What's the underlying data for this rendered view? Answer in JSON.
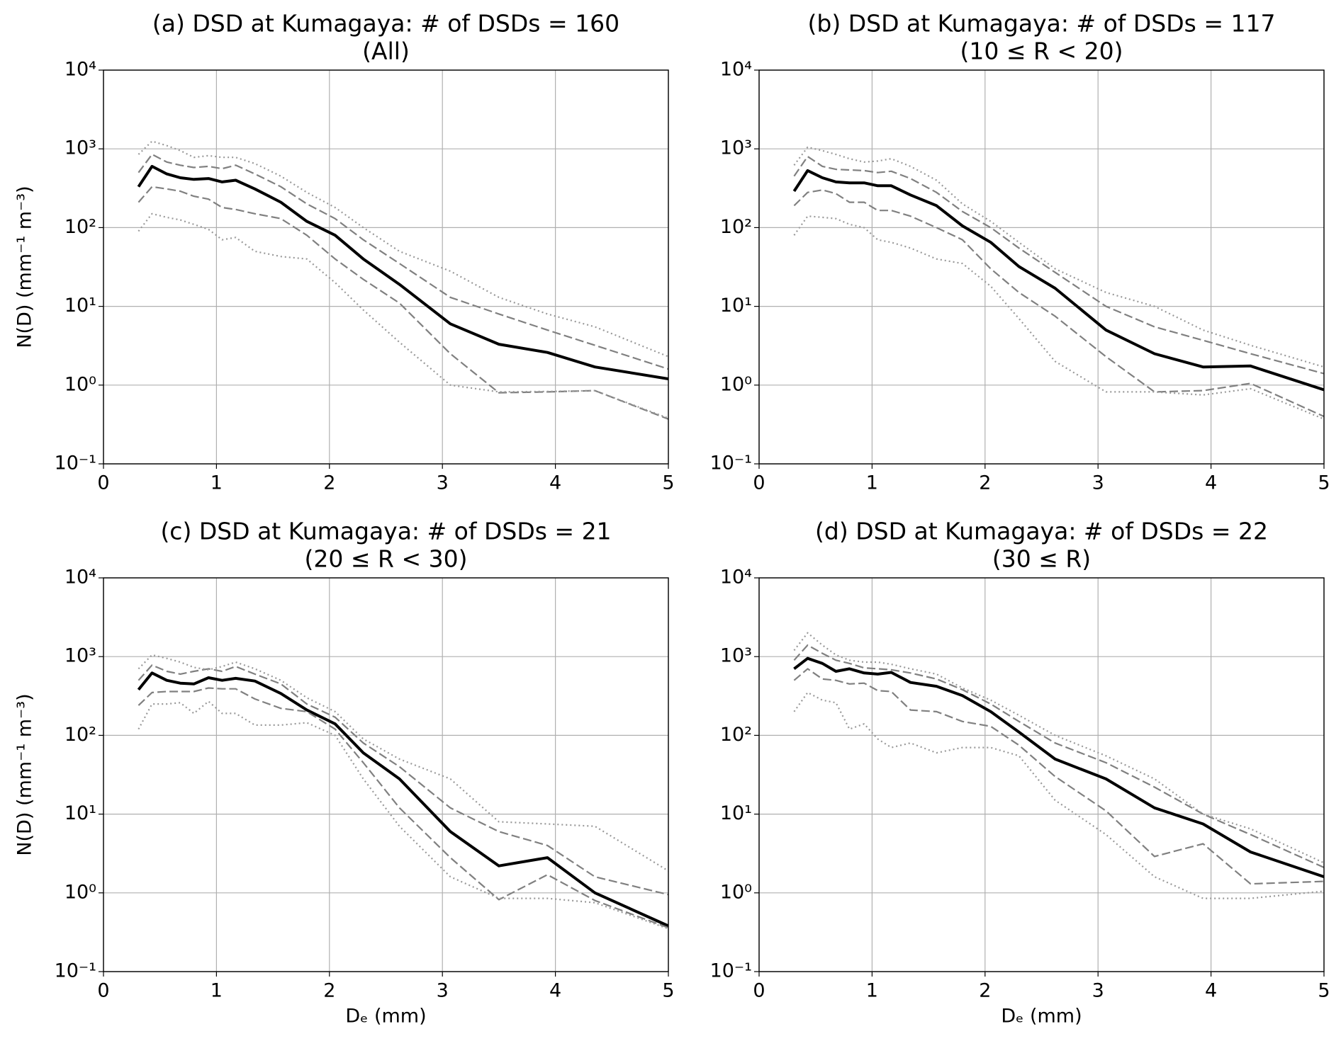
{
  "chart_data": [
    {
      "type": "line",
      "title": "(a) DSD at Kumagaya: # of DSDs = 160",
      "subtitle": "(All)",
      "ylabel": "N(D) (mm⁻¹ m⁻³)",
      "x": [
        0.31,
        0.43,
        0.56,
        0.68,
        0.8,
        0.93,
        1.05,
        1.17,
        1.34,
        1.57,
        1.8,
        2.05,
        2.3,
        2.62,
        3.07,
        3.5,
        3.93,
        4.35,
        5.0
      ],
      "xlim": [
        0,
        5
      ],
      "xticks": [
        0,
        1,
        2,
        3,
        4,
        5
      ],
      "ylim": [
        0.1,
        10000
      ],
      "log_y": true,
      "grid": true,
      "yticks": [
        {
          "value": 0.1,
          "label": "10⁻¹"
        },
        {
          "value": 1,
          "label": "10⁰"
        },
        {
          "value": 10,
          "label": "10¹"
        },
        {
          "value": 100,
          "label": "10²"
        },
        {
          "value": 1000,
          "label": "10³"
        },
        {
          "value": 10000,
          "label": "10⁴"
        }
      ],
      "series": [
        {
          "color": "#000000",
          "style": "solid",
          "values": [
            330,
            600,
            480,
            430,
            410,
            420,
            380,
            400,
            310,
            210,
            120,
            80,
            40,
            19,
            6,
            3.3,
            2.6,
            1.7,
            1.2
          ]
        },
        {
          "color": "#808080",
          "style": "dashed",
          "values": [
            500,
            850,
            680,
            620,
            580,
            600,
            560,
            620,
            480,
            330,
            200,
            130,
            70,
            35,
            13,
            8,
            5,
            3.2,
            1.6
          ]
        },
        {
          "color": "#808080",
          "style": "dashed",
          "values": [
            210,
            330,
            310,
            290,
            250,
            230,
            180,
            170,
            150,
            130,
            80,
            40,
            22,
            11,
            2.5,
            0.8,
            0.82,
            0.85,
            0.37
          ]
        },
        {
          "color": "#999999",
          "style": "dotted",
          "values": [
            850,
            1250,
            1100,
            950,
            780,
            820,
            780,
            780,
            650,
            450,
            280,
            180,
            100,
            50,
            28,
            13,
            8,
            5.5,
            2.3
          ]
        },
        {
          "color": "#999999",
          "style": "dotted",
          "values": [
            90,
            150,
            135,
            125,
            110,
            95,
            70,
            75,
            50,
            43,
            40,
            20,
            9,
            3.5,
            1.0,
            0.82,
            0.83,
            0.85,
            0.38
          ]
        }
      ]
    },
    {
      "type": "line",
      "title": "(b) DSD at Kumagaya: # of DSDs = 117",
      "subtitle": "(10 ≤ R < 20)",
      "x": [
        0.31,
        0.43,
        0.56,
        0.68,
        0.8,
        0.93,
        1.05,
        1.17,
        1.34,
        1.57,
        1.8,
        2.05,
        2.3,
        2.62,
        3.07,
        3.5,
        3.93,
        4.35,
        5.0
      ],
      "xlim": [
        0,
        5
      ],
      "xticks": [
        0,
        1,
        2,
        3,
        4,
        5
      ],
      "ylim": [
        0.1,
        10000
      ],
      "log_y": true,
      "grid": true,
      "yticks": [
        {
          "value": 0.1,
          "label": "10⁻¹"
        },
        {
          "value": 1,
          "label": "10⁰"
        },
        {
          "value": 10,
          "label": "10¹"
        },
        {
          "value": 100,
          "label": "10²"
        },
        {
          "value": 1000,
          "label": "10³"
        },
        {
          "value": 10000,
          "label": "10⁴"
        }
      ],
      "series": [
        {
          "color": "#000000",
          "style": "solid",
          "values": [
            290,
            530,
            430,
            380,
            370,
            370,
            340,
            340,
            260,
            190,
            105,
            65,
            32,
            17,
            5,
            2.5,
            1.7,
            1.75,
            0.87
          ]
        },
        {
          "color": "#808080",
          "style": "dashed",
          "values": [
            450,
            800,
            600,
            550,
            540,
            530,
            500,
            520,
            420,
            280,
            160,
            100,
            55,
            27,
            10,
            5.5,
            3.7,
            2.5,
            1.4
          ]
        },
        {
          "color": "#808080",
          "style": "dashed",
          "values": [
            190,
            280,
            300,
            270,
            210,
            210,
            165,
            165,
            140,
            100,
            70,
            30,
            15,
            7.5,
            2.3,
            0.82,
            0.85,
            1.05,
            0.4
          ]
        },
        {
          "color": "#999999",
          "style": "dotted",
          "values": [
            620,
            1050,
            950,
            850,
            750,
            680,
            700,
            750,
            600,
            400,
            200,
            120,
            65,
            30,
            15,
            10,
            5,
            3.2,
            1.7
          ]
        },
        {
          "color": "#999999",
          "style": "dotted",
          "values": [
            80,
            140,
            135,
            130,
            110,
            100,
            70,
            65,
            55,
            40,
            35,
            18,
            7,
            2,
            0.82,
            0.82,
            0.75,
            0.9,
            0.37
          ]
        }
      ]
    },
    {
      "type": "line",
      "title": "(c) DSD at Kumagaya: # of DSDs = 21",
      "subtitle": "(20 ≤ R < 30)",
      "ylabel": "N(D) (mm⁻¹ m⁻³)",
      "xlabel": "Dₑ (mm)",
      "x": [
        0.31,
        0.43,
        0.56,
        0.68,
        0.8,
        0.93,
        1.05,
        1.17,
        1.34,
        1.57,
        1.8,
        2.05,
        2.3,
        2.62,
        3.07,
        3.5,
        3.93,
        4.35,
        5.0
      ],
      "xlim": [
        0,
        5
      ],
      "xticks": [
        0,
        1,
        2,
        3,
        4,
        5
      ],
      "ylim": [
        0.1,
        10000
      ],
      "log_y": true,
      "grid": true,
      "yticks": [
        {
          "value": 0.1,
          "label": "10⁻¹"
        },
        {
          "value": 1,
          "label": "10⁰"
        },
        {
          "value": 10,
          "label": "10¹"
        },
        {
          "value": 100,
          "label": "10²"
        },
        {
          "value": 1000,
          "label": "10³"
        },
        {
          "value": 10000,
          "label": "10⁴"
        }
      ],
      "series": [
        {
          "color": "#000000",
          "style": "solid",
          "values": [
            380,
            620,
            500,
            460,
            450,
            540,
            500,
            530,
            490,
            340,
            210,
            140,
            60,
            28,
            6,
            2.2,
            2.8,
            1.0,
            0.38
          ]
        },
        {
          "color": "#808080",
          "style": "dashed",
          "values": [
            500,
            780,
            650,
            600,
            650,
            700,
            650,
            750,
            600,
            450,
            250,
            170,
            80,
            40,
            12,
            6,
            4,
            1.6,
            0.95
          ]
        },
        {
          "color": "#808080",
          "style": "dashed",
          "values": [
            240,
            350,
            360,
            360,
            360,
            400,
            390,
            390,
            290,
            220,
            200,
            120,
            45,
            12,
            2.8,
            0.82,
            1.7,
            0.8,
            0.36
          ]
        },
        {
          "color": "#999999",
          "style": "dotted",
          "values": [
            700,
            1050,
            950,
            850,
            730,
            680,
            750,
            850,
            700,
            500,
            300,
            200,
            90,
            50,
            28,
            8,
            7.5,
            7,
            1.9
          ]
        },
        {
          "color": "#999999",
          "style": "dotted",
          "values": [
            120,
            250,
            250,
            260,
            190,
            270,
            190,
            190,
            135,
            135,
            145,
            100,
            28,
            7,
            1.6,
            0.85,
            0.85,
            0.75,
            0.35
          ]
        }
      ]
    },
    {
      "type": "line",
      "title": "(d) DSD at Kumagaya: # of DSDs = 22",
      "subtitle": "(30 ≤ R)",
      "xlabel": "Dₑ (mm)",
      "x": [
        0.31,
        0.43,
        0.56,
        0.68,
        0.8,
        0.93,
        1.05,
        1.17,
        1.34,
        1.57,
        1.8,
        2.05,
        2.3,
        2.62,
        3.07,
        3.5,
        3.93,
        4.35,
        5.0
      ],
      "xlim": [
        0,
        5
      ],
      "xticks": [
        0,
        1,
        2,
        3,
        4,
        5
      ],
      "ylim": [
        0.1,
        10000
      ],
      "log_y": true,
      "grid": true,
      "yticks": [
        {
          "value": 0.1,
          "label": "10⁻¹"
        },
        {
          "value": 1,
          "label": "10⁰"
        },
        {
          "value": 10,
          "label": "10¹"
        },
        {
          "value": 100,
          "label": "10²"
        },
        {
          "value": 1000,
          "label": "10³"
        },
        {
          "value": 10000,
          "label": "10⁴"
        }
      ],
      "series": [
        {
          "color": "#000000",
          "style": "solid",
          "values": [
            700,
            950,
            820,
            650,
            700,
            620,
            600,
            630,
            470,
            420,
            320,
            200,
            110,
            50,
            28,
            12,
            7.5,
            3.3,
            1.6
          ]
        },
        {
          "color": "#808080",
          "style": "dashed",
          "values": [
            900,
            1400,
            1100,
            900,
            820,
            720,
            700,
            680,
            620,
            520,
            380,
            250,
            150,
            80,
            45,
            22,
            10,
            5.5,
            2.1
          ]
        },
        {
          "color": "#808080",
          "style": "dashed",
          "values": [
            500,
            700,
            520,
            500,
            450,
            460,
            370,
            360,
            210,
            200,
            150,
            130,
            75,
            30,
            11,
            2.9,
            4.2,
            1.3,
            1.4
          ]
        },
        {
          "color": "#999999",
          "style": "dotted",
          "values": [
            1200,
            2000,
            1400,
            1050,
            900,
            850,
            850,
            800,
            700,
            600,
            400,
            280,
            180,
            100,
            55,
            28,
            10,
            6.5,
            2.4
          ]
        },
        {
          "color": "#999999",
          "style": "dotted",
          "values": [
            200,
            350,
            280,
            260,
            120,
            140,
            90,
            70,
            80,
            60,
            70,
            70,
            55,
            15,
            5.5,
            1.6,
            0.85,
            0.85,
            1.05
          ]
        }
      ]
    }
  ]
}
